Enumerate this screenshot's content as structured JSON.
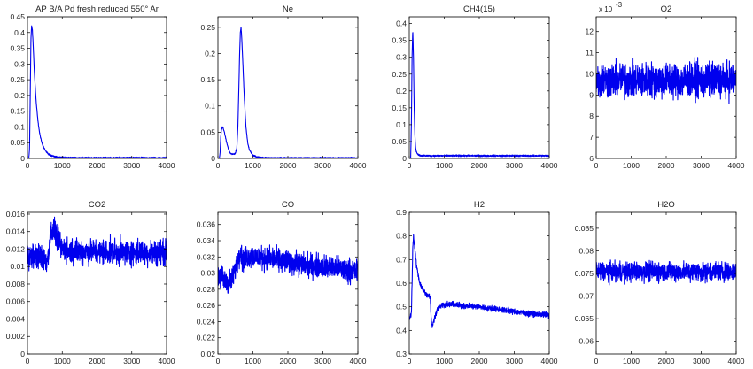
{
  "chart_data": [
    {
      "type": "line",
      "title": "AP B/A Pd fresh reduced 550° Ar",
      "xlim": [
        0,
        4000
      ],
      "ylim": [
        0,
        0.45
      ],
      "xticks": [
        "0",
        "1000",
        "2000",
        "3000",
        "4000"
      ],
      "yticks": [
        "0",
        "0.05",
        "0.1",
        "0.15",
        "0.2",
        "0.25",
        "0.3",
        "0.35",
        "0.4",
        "0.45"
      ],
      "exponent_label": "",
      "line_color": "#0000ee",
      "series": [
        {
          "x": [
            0,
            40,
            60,
            80,
            100,
            120,
            140,
            160,
            180,
            200,
            250,
            300,
            350,
            400,
            450,
            500,
            550,
            600,
            700,
            800,
            900,
            1000,
            1500,
            2000,
            3000,
            4000
          ],
          "y": [
            0,
            0.0,
            0.03,
            0.2,
            0.38,
            0.42,
            0.41,
            0.37,
            0.32,
            0.27,
            0.18,
            0.12,
            0.08,
            0.055,
            0.04,
            0.028,
            0.02,
            0.014,
            0.008,
            0.005,
            0.004,
            0.003,
            0.002,
            0.002,
            0.002,
            0.002
          ],
          "noise": 0.002
        }
      ]
    },
    {
      "type": "line",
      "title": "Ne",
      "xlim": [
        0,
        4000
      ],
      "ylim": [
        0,
        0.27
      ],
      "xticks": [
        "0",
        "1000",
        "2000",
        "3000",
        "4000"
      ],
      "yticks": [
        "0",
        "0.05",
        "0.1",
        "0.15",
        "0.2",
        "0.25"
      ],
      "exponent_label": "",
      "line_color": "#0000ee",
      "series": [
        {
          "x": [
            0,
            40,
            60,
            80,
            100,
            130,
            160,
            200,
            250,
            300,
            350,
            400,
            450,
            500,
            540,
            570,
            600,
            620,
            640,
            660,
            680,
            700,
            750,
            800,
            850,
            900,
            1000,
            1100,
            1200,
            1500,
            2000,
            3000,
            4000
          ],
          "y": [
            0,
            0.0,
            0.01,
            0.04,
            0.055,
            0.06,
            0.056,
            0.045,
            0.03,
            0.018,
            0.01,
            0.008,
            0.008,
            0.01,
            0.02,
            0.06,
            0.14,
            0.2,
            0.24,
            0.25,
            0.23,
            0.2,
            0.12,
            0.06,
            0.03,
            0.016,
            0.006,
            0.003,
            0.002,
            0.001,
            0.001,
            0.001,
            0.001
          ],
          "noise": 0.001
        }
      ]
    },
    {
      "type": "line",
      "title": "CH4(15)",
      "xlim": [
        0,
        4000
      ],
      "ylim": [
        0,
        0.42
      ],
      "xticks": [
        "0",
        "1000",
        "2000",
        "3000",
        "4000"
      ],
      "yticks": [
        "0",
        "0.05",
        "0.1",
        "0.15",
        "0.2",
        "0.25",
        "0.3",
        "0.35",
        "0.4"
      ],
      "exponent_label": "",
      "line_color": "#0000ee",
      "series": [
        {
          "x": [
            0,
            40,
            60,
            80,
            100,
            120,
            140,
            160,
            180,
            200,
            250,
            300,
            400,
            600,
            1000,
            2000,
            3000,
            4000
          ],
          "y": [
            0,
            0.0,
            0.1,
            0.3,
            0.38,
            0.3,
            0.15,
            0.07,
            0.035,
            0.02,
            0.012,
            0.009,
            0.008,
            0.008,
            0.008,
            0.008,
            0.008,
            0.008
          ],
          "noise": 0.002
        }
      ]
    },
    {
      "type": "line",
      "title": "O2",
      "xlim": [
        0,
        4000
      ],
      "ylim": [
        6,
        12.7
      ],
      "xticks": [
        "0",
        "1000",
        "2000",
        "3000",
        "4000"
      ],
      "yticks": [
        "6",
        "7",
        "8",
        "9",
        "10",
        "11",
        "12"
      ],
      "exponent_label": "x 10",
      "exponent_power": "-3",
      "line_color": "#0000ee",
      "series": [
        {
          "x": [
            0,
            4000
          ],
          "y": [
            9.7,
            9.7
          ],
          "noise": 0.7
        }
      ]
    },
    {
      "type": "line",
      "title": "CO2",
      "xlim": [
        0,
        4000
      ],
      "ylim": [
        0,
        0.0162
      ],
      "xticks": [
        "0",
        "1000",
        "2000",
        "3000",
        "4000"
      ],
      "yticks": [
        "0",
        "0.002",
        "0.004",
        "0.006",
        "0.008",
        "0.01",
        "0.012",
        "0.014",
        "0.016"
      ],
      "exponent_label": "",
      "line_color": "#0000ee",
      "series": [
        {
          "x": [
            0,
            300,
            500,
            550,
            600,
            650,
            700,
            800,
            900,
            1000,
            1200,
            1500,
            2000,
            3000,
            4000
          ],
          "y": [
            0.0112,
            0.0112,
            0.0108,
            0.0106,
            0.011,
            0.0135,
            0.0142,
            0.0138,
            0.0128,
            0.012,
            0.0118,
            0.0118,
            0.0117,
            0.0116,
            0.0116
          ],
          "noise": 0.0012
        }
      ]
    },
    {
      "type": "line",
      "title": "CO",
      "xlim": [
        0,
        4000
      ],
      "ylim": [
        0.02,
        0.0375
      ],
      "xticks": [
        "0",
        "1000",
        "2000",
        "3000",
        "4000"
      ],
      "yticks": [
        "0.02",
        "0.022",
        "0.024",
        "0.026",
        "0.028",
        "0.03",
        "0.032",
        "0.034",
        "0.036"
      ],
      "exponent_label": "",
      "line_color": "#0000ee",
      "series": [
        {
          "x": [
            0,
            100,
            200,
            300,
            400,
            500,
            600,
            650,
            700,
            800,
            900,
            1000,
            1500,
            2000,
            2500,
            3000,
            3500,
            4000
          ],
          "y": [
            0.0298,
            0.0295,
            0.029,
            0.0288,
            0.0292,
            0.0305,
            0.0322,
            0.0328,
            0.0315,
            0.0318,
            0.0322,
            0.032,
            0.0318,
            0.0314,
            0.031,
            0.0308,
            0.0305,
            0.0302
          ],
          "noise": 0.0012
        }
      ]
    },
    {
      "type": "line",
      "title": "H2",
      "xlim": [
        0,
        4000
      ],
      "ylim": [
        0.3,
        0.9
      ],
      "xticks": [
        "0",
        "1000",
        "2000",
        "3000",
        "4000"
      ],
      "yticks": [
        "0.3",
        "0.4",
        "0.5",
        "0.6",
        "0.7",
        "0.8",
        "0.9"
      ],
      "exponent_label": "",
      "line_color": "#0000ee",
      "series": [
        {
          "x": [
            0,
            60,
            80,
            100,
            120,
            150,
            200,
            300,
            400,
            500,
            600,
            620,
            650,
            700,
            800,
            900,
            1000,
            1200,
            1500,
            2000,
            2500,
            3000,
            3500,
            4000
          ],
          "y": [
            0.45,
            0.47,
            0.6,
            0.75,
            0.8,
            0.76,
            0.68,
            0.6,
            0.57,
            0.55,
            0.54,
            0.46,
            0.42,
            0.44,
            0.49,
            0.505,
            0.51,
            0.51,
            0.505,
            0.5,
            0.49,
            0.48,
            0.47,
            0.465
          ],
          "noise": 0.01
        }
      ]
    },
    {
      "type": "line",
      "title": "H2O",
      "xlim": [
        0,
        4000
      ],
      "ylim": [
        0.0572,
        0.0885
      ],
      "xticks": [
        "0",
        "1000",
        "2000",
        "3000",
        "4000"
      ],
      "yticks": [
        "0.06",
        "0.065",
        "0.07",
        "0.075",
        "0.08",
        "0.085"
      ],
      "exponent_label": "",
      "line_color": "#0000ee",
      "series": [
        {
          "x": [
            0,
            4000
          ],
          "y": [
            0.0754,
            0.0754
          ],
          "noise": 0.0018
        }
      ]
    }
  ]
}
